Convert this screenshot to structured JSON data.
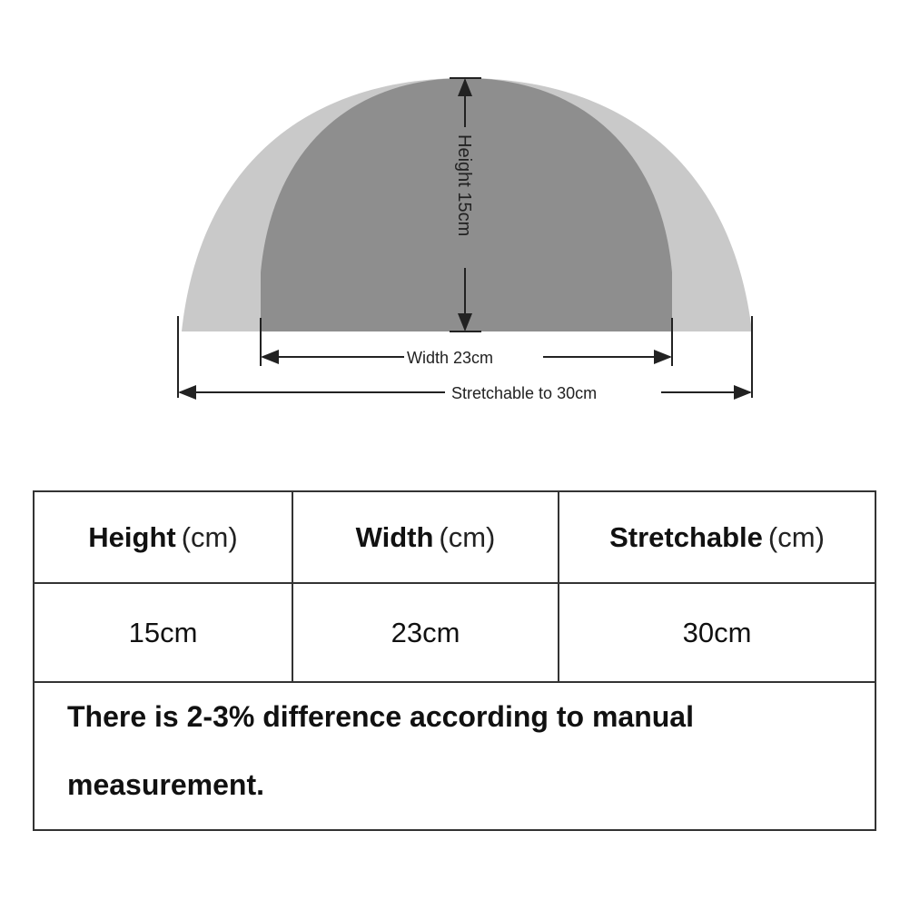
{
  "diagram": {
    "height_label": "Height 15cm",
    "width_label": "Width 23cm",
    "stretch_label": "Stretchable to 30cm",
    "colors": {
      "outer": "#c9c9c9",
      "inner": "#8e8e8e",
      "lines": "#222222"
    }
  },
  "table": {
    "headers": [
      {
        "label": "Height",
        "unit": "(cm)"
      },
      {
        "label": "Width",
        "unit": "(cm)"
      },
      {
        "label": "Stretchable",
        "unit": "(cm)"
      }
    ],
    "values": [
      "15cm",
      "23cm",
      "30cm"
    ],
    "note_line1": "There is 2-3% difference according to manual",
    "note_line2": "measurement."
  }
}
